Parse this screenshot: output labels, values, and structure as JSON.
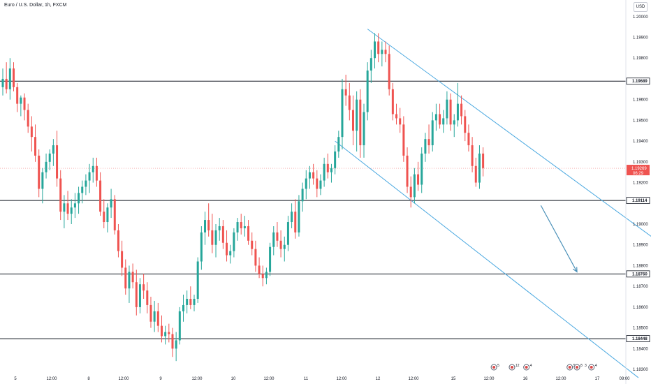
{
  "header": {
    "title": "Euro / U.S. Dollar, 1h, FXCM",
    "currency": "USD"
  },
  "colors": {
    "up": "#26a69a",
    "down": "#ef5350",
    "channel": "#4aa8e0",
    "level": "#131722",
    "arrow": "#4a90b8",
    "last": "#f5a3a3"
  },
  "chart_data": {
    "type": "candlestick",
    "ylim": [
      1.1828,
      1.2008
    ],
    "price_ticks": [
      "1.18300",
      "1.18400",
      "1.18500",
      "1.18600",
      "1.18700",
      "1.18800",
      "1.18900",
      "1.19000",
      "1.19200",
      "1.19300",
      "1.19400",
      "1.19500",
      "1.19600",
      "1.19800",
      "1.19900",
      "1.20000"
    ],
    "time_labels": [
      "5",
      "12:00",
      "8",
      "12:00",
      "9",
      "12:00",
      "10",
      "12:00",
      "11",
      "12:00",
      "12",
      "12:00",
      "15",
      "12:00",
      "16",
      "12:00",
      "17",
      "09:00"
    ],
    "levels": [
      {
        "label": "1.19689",
        "price": 1.19689
      },
      {
        "label": "1.19114",
        "price": 1.19114
      },
      {
        "label": "1.18760",
        "price": 1.1876
      },
      {
        "label": "1.18448",
        "price": 1.18448
      }
    ],
    "last_price": {
      "label": "1.19269",
      "countdown": "06:29",
      "price": 1.19269
    },
    "channel": {
      "upper": [
        [
          101,
          1.1994
        ],
        [
          180,
          1.18935
        ]
      ],
      "lower": [
        [
          92,
          1.194
        ],
        [
          176,
          1.1826
        ]
      ]
    },
    "projection_arrow": {
      "from": [
        149,
        1.1909
      ],
      "to": [
        159,
        1.1877
      ]
    },
    "events": [
      {
        "bar": 136,
        "labels": [
          "5"
        ]
      },
      {
        "bar": 141,
        "labels": [
          "12"
        ]
      },
      {
        "bar": 145,
        "labels": [
          "4"
        ]
      },
      {
        "bar": 157,
        "labels": [
          "5"
        ]
      },
      {
        "bar": 159,
        "labels": [
          "8",
          "3"
        ]
      },
      {
        "bar": 163,
        "labels": [
          "4"
        ]
      }
    ],
    "candles": [
      [
        1.1966,
        1.1975,
        1.1962,
        1.197
      ],
      [
        1.197,
        1.1978,
        1.1963,
        1.1965
      ],
      [
        1.1965,
        1.198,
        1.196,
        1.1975
      ],
      [
        1.1975,
        1.1978,
        1.1964,
        1.1966
      ],
      [
        1.1966,
        1.1968,
        1.1954,
        1.1958
      ],
      [
        1.1958,
        1.1962,
        1.1952,
        1.1961
      ],
      [
        1.1961,
        1.1963,
        1.195,
        1.1955
      ],
      [
        1.1955,
        1.1958,
        1.1944,
        1.1947
      ],
      [
        1.1947,
        1.1952,
        1.1935,
        1.1942
      ],
      [
        1.1942,
        1.1948,
        1.193,
        1.1933
      ],
      [
        1.1933,
        1.1936,
        1.1913,
        1.1917
      ],
      [
        1.1917,
        1.1927,
        1.191,
        1.1925
      ],
      [
        1.1925,
        1.1934,
        1.1922,
        1.193
      ],
      [
        1.193,
        1.1936,
        1.1926,
        1.1934
      ],
      [
        1.1934,
        1.1941,
        1.1928,
        1.1938
      ],
      [
        1.1938,
        1.1945,
        1.1918,
        1.1922
      ],
      [
        1.1922,
        1.1926,
        1.1902,
        1.1906
      ],
      [
        1.1906,
        1.1914,
        1.1898,
        1.191
      ],
      [
        1.191,
        1.1916,
        1.1902,
        1.1905
      ],
      [
        1.1905,
        1.1912,
        1.19,
        1.1908
      ],
      [
        1.1908,
        1.1915,
        1.1903,
        1.191
      ],
      [
        1.191,
        1.1918,
        1.1905,
        1.1915
      ],
      [
        1.1915,
        1.1921,
        1.191,
        1.1918
      ],
      [
        1.1918,
        1.1924,
        1.1914,
        1.1921
      ],
      [
        1.1921,
        1.1929,
        1.1915,
        1.1925
      ],
      [
        1.1925,
        1.1932,
        1.192,
        1.1928
      ],
      [
        1.1928,
        1.1932,
        1.1918,
        1.1921
      ],
      [
        1.1921,
        1.1925,
        1.1904,
        1.1906
      ],
      [
        1.1906,
        1.1912,
        1.1898,
        1.1901
      ],
      [
        1.1901,
        1.191,
        1.1896,
        1.1908
      ],
      [
        1.1908,
        1.1917,
        1.1903,
        1.1912
      ],
      [
        1.1912,
        1.1914,
        1.1895,
        1.1897
      ],
      [
        1.1897,
        1.19,
        1.1884,
        1.1887
      ],
      [
        1.1887,
        1.1892,
        1.1875,
        1.1879
      ],
      [
        1.1879,
        1.1883,
        1.1866,
        1.1869
      ],
      [
        1.1869,
        1.188,
        1.1862,
        1.1877
      ],
      [
        1.1877,
        1.1881,
        1.1869,
        1.1872
      ],
      [
        1.1872,
        1.1878,
        1.1856,
        1.186
      ],
      [
        1.186,
        1.1874,
        1.1857,
        1.1871
      ],
      [
        1.1871,
        1.1876,
        1.1864,
        1.1868
      ],
      [
        1.1868,
        1.1872,
        1.1857,
        1.1861
      ],
      [
        1.1861,
        1.1865,
        1.185,
        1.1853
      ],
      [
        1.1853,
        1.1863,
        1.1848,
        1.1858
      ],
      [
        1.1858,
        1.1862,
        1.1848,
        1.1851
      ],
      [
        1.1851,
        1.1856,
        1.1843,
        1.1846
      ],
      [
        1.1846,
        1.1851,
        1.1842,
        1.1848
      ],
      [
        1.1848,
        1.1852,
        1.1843,
        1.1847
      ],
      [
        1.1847,
        1.185,
        1.1836,
        1.184
      ],
      [
        1.184,
        1.1848,
        1.1834,
        1.1844
      ],
      [
        1.1844,
        1.186,
        1.1842,
        1.1858
      ],
      [
        1.1858,
        1.1866,
        1.1853,
        1.1861
      ],
      [
        1.1861,
        1.1868,
        1.1857,
        1.1864
      ],
      [
        1.1864,
        1.187,
        1.1859,
        1.1861
      ],
      [
        1.1861,
        1.1866,
        1.1858,
        1.1864
      ],
      [
        1.1864,
        1.1884,
        1.1862,
        1.1882
      ],
      [
        1.1882,
        1.1899,
        1.1878,
        1.1896
      ],
      [
        1.1896,
        1.1906,
        1.189,
        1.1902
      ],
      [
        1.1902,
        1.191,
        1.1894,
        1.1897
      ],
      [
        1.1897,
        1.1905,
        1.1886,
        1.189
      ],
      [
        1.189,
        1.19,
        1.1884,
        1.1897
      ],
      [
        1.1897,
        1.1903,
        1.1892,
        1.1899
      ],
      [
        1.1899,
        1.1902,
        1.1888,
        1.1891
      ],
      [
        1.1891,
        1.1897,
        1.1882,
        1.1885
      ],
      [
        1.1885,
        1.189,
        1.1881,
        1.1887
      ],
      [
        1.1887,
        1.1898,
        1.1884,
        1.1896
      ],
      [
        1.1896,
        1.1903,
        1.1892,
        1.1901
      ],
      [
        1.1901,
        1.1905,
        1.1895,
        1.1898
      ],
      [
        1.1898,
        1.1904,
        1.1894,
        1.1899
      ],
      [
        1.1899,
        1.1902,
        1.189,
        1.1892
      ],
      [
        1.1892,
        1.1896,
        1.1885,
        1.1888
      ],
      [
        1.1888,
        1.1892,
        1.1877,
        1.188
      ],
      [
        1.188,
        1.1884,
        1.1874,
        1.1876
      ],
      [
        1.1876,
        1.188,
        1.187,
        1.1874
      ],
      [
        1.1874,
        1.1879,
        1.1871,
        1.1877
      ],
      [
        1.1877,
        1.1891,
        1.1875,
        1.1889
      ],
      [
        1.1889,
        1.1899,
        1.1885,
        1.1896
      ],
      [
        1.1896,
        1.1901,
        1.1889,
        1.1892
      ],
      [
        1.1892,
        1.1897,
        1.1884,
        1.1888
      ],
      [
        1.1888,
        1.1894,
        1.1882,
        1.189
      ],
      [
        1.189,
        1.1904,
        1.1887,
        1.1901
      ],
      [
        1.1901,
        1.191,
        1.1898,
        1.1906
      ],
      [
        1.1906,
        1.1912,
        1.1893,
        1.1896
      ],
      [
        1.1896,
        1.1914,
        1.1894,
        1.1911
      ],
      [
        1.1911,
        1.192,
        1.1906,
        1.1917
      ],
      [
        1.1917,
        1.1926,
        1.1912,
        1.1922
      ],
      [
        1.1922,
        1.1928,
        1.1917,
        1.1925
      ],
      [
        1.1925,
        1.1929,
        1.1919,
        1.1922
      ],
      [
        1.1922,
        1.1926,
        1.1913,
        1.1917
      ],
      [
        1.1917,
        1.1924,
        1.1914,
        1.1921
      ],
      [
        1.1921,
        1.1932,
        1.1918,
        1.1929
      ],
      [
        1.1929,
        1.1934,
        1.1922,
        1.1925
      ],
      [
        1.1925,
        1.1929,
        1.192,
        1.1927
      ],
      [
        1.1927,
        1.1938,
        1.1924,
        1.1935
      ],
      [
        1.1935,
        1.1945,
        1.1932,
        1.1942
      ],
      [
        1.1942,
        1.197,
        1.1936,
        1.1965
      ],
      [
        1.1965,
        1.1972,
        1.1957,
        1.1962
      ],
      [
        1.1962,
        1.1968,
        1.195,
        1.1955
      ],
      [
        1.1955,
        1.1962,
        1.1938,
        1.1945
      ],
      [
        1.1945,
        1.1964,
        1.1935,
        1.196
      ],
      [
        1.196,
        1.1965,
        1.1932,
        1.1938
      ],
      [
        1.1938,
        1.1958,
        1.1932,
        1.1954
      ],
      [
        1.1954,
        1.1978,
        1.195,
        1.1974
      ],
      [
        1.1974,
        1.1984,
        1.1968,
        1.198
      ],
      [
        1.198,
        1.1992,
        1.1975,
        1.1988
      ],
      [
        1.1988,
        1.1992,
        1.1978,
        1.1982
      ],
      [
        1.1982,
        1.1988,
        1.1976,
        1.1984
      ],
      [
        1.1984,
        1.1988,
        1.1978,
        1.1982
      ],
      [
        1.1982,
        1.1986,
        1.1962,
        1.1965
      ],
      [
        1.1965,
        1.1968,
        1.195,
        1.1953
      ],
      [
        1.1953,
        1.1958,
        1.1948,
        1.1951
      ],
      [
        1.1951,
        1.1956,
        1.1944,
        1.1948
      ],
      [
        1.1948,
        1.1952,
        1.193,
        1.1933
      ],
      [
        1.1933,
        1.1937,
        1.1915,
        1.1918
      ],
      [
        1.1918,
        1.1923,
        1.1908,
        1.1913
      ],
      [
        1.1913,
        1.1927,
        1.191,
        1.1924
      ],
      [
        1.1924,
        1.193,
        1.1916,
        1.1919
      ],
      [
        1.1919,
        1.1937,
        1.1915,
        1.1934
      ],
      [
        1.1934,
        1.1944,
        1.193,
        1.1941
      ],
      [
        1.1941,
        1.1948,
        1.1934,
        1.1938
      ],
      [
        1.1938,
        1.1954,
        1.1935,
        1.195
      ],
      [
        1.195,
        1.1958,
        1.1945,
        1.1953
      ],
      [
        1.1953,
        1.1958,
        1.1946,
        1.1948
      ],
      [
        1.1948,
        1.1955,
        1.1944,
        1.1951
      ],
      [
        1.1951,
        1.1964,
        1.1948,
        1.196
      ],
      [
        1.196,
        1.1963,
        1.1945,
        1.1948
      ],
      [
        1.1948,
        1.1953,
        1.1942,
        1.195
      ],
      [
        1.195,
        1.1968,
        1.1947,
        1.1958
      ],
      [
        1.1958,
        1.1962,
        1.1948,
        1.1952
      ],
      [
        1.1952,
        1.1955,
        1.194,
        1.1944
      ],
      [
        1.1944,
        1.1948,
        1.1935,
        1.1938
      ],
      [
        1.1938,
        1.1942,
        1.1925,
        1.1928
      ],
      [
        1.1928,
        1.1932,
        1.1918,
        1.192
      ],
      [
        1.192,
        1.1938,
        1.1917,
        1.1934
      ],
      [
        1.1934,
        1.1937,
        1.1923,
        1.1927
      ]
    ]
  }
}
